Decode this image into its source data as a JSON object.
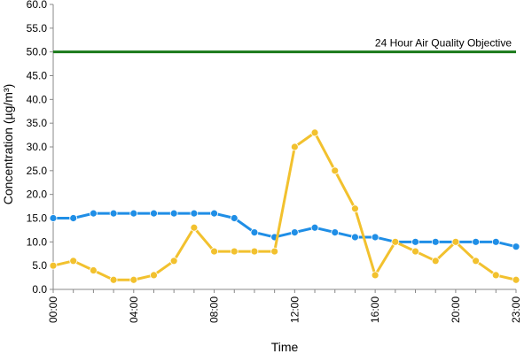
{
  "chart_data": {
    "type": "line",
    "xlabel": "Time",
    "ylabel": "Concentration (µg/m³)",
    "ylim": [
      0,
      60
    ],
    "yticks": [
      "0.0",
      "5.0",
      "10.0",
      "15.0",
      "20.0",
      "25.0",
      "30.0",
      "35.0",
      "40.0",
      "45.0",
      "50.0",
      "55.0",
      "60.0"
    ],
    "x": [
      "00:00",
      "01:00",
      "02:00",
      "03:00",
      "04:00",
      "05:00",
      "06:00",
      "07:00",
      "08:00",
      "09:00",
      "10:00",
      "11:00",
      "12:00",
      "13:00",
      "14:00",
      "15:00",
      "16:00",
      "17:00",
      "18:00",
      "19:00",
      "20:00",
      "21:00",
      "22:00",
      "23:00"
    ],
    "xtick_labels": [
      "00:00",
      "04:00",
      "08:00",
      "12:00",
      "16:00",
      "20:00",
      "23:00"
    ],
    "grid": false,
    "series": [
      {
        "color": "#1f8ee6",
        "values": [
          15,
          15,
          16,
          16,
          16,
          16,
          16,
          16,
          16,
          15,
          12,
          11,
          12,
          13,
          12,
          11,
          11,
          10,
          10,
          10,
          10,
          10,
          10,
          9
        ]
      },
      {
        "color": "#f2c12e",
        "values": [
          5,
          6,
          4,
          2,
          2,
          3,
          6,
          13,
          8,
          8,
          8,
          8,
          30,
          33,
          25,
          17,
          3,
          10,
          8,
          6,
          10,
          6,
          3,
          2
        ]
      }
    ],
    "reference_line": {
      "value": 50,
      "label": "24 Hour Air Quality Objective",
      "color": "#1a7a1a"
    }
  }
}
